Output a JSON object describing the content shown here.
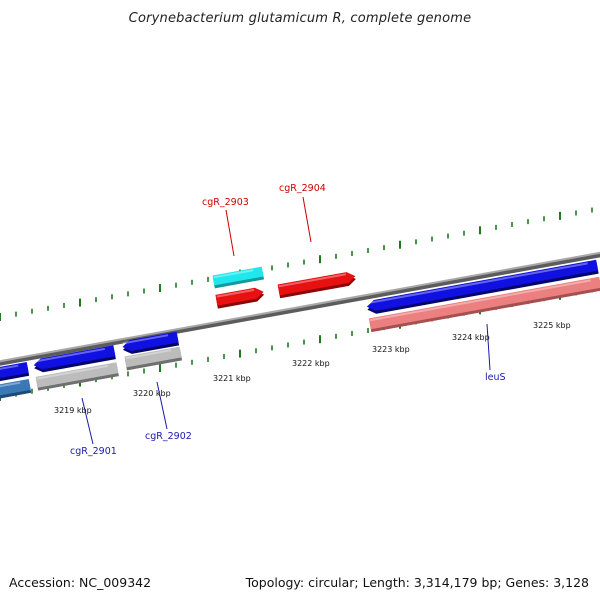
{
  "title": "Corynebacterium glutamicum R, complete genome",
  "footer": {
    "accession": "Accession: NC_009342",
    "summary": "Topology: circular; Length: 3,314,179 bp; Genes: 3,128"
  },
  "colors": {
    "backbone": "#8a8a8a",
    "tick": "#1f7a1f",
    "gene_blue": "#1010e0",
    "gene_red": "#e81010",
    "gene_cyan": "#1ee8ee",
    "gene_gray": "#bcbcbc",
    "gene_pink": "#ec8080",
    "gene_steel": "#3a78b8",
    "label_red": "#cc0000",
    "label_blue": "#1a1aa8",
    "scale_label": "#111111"
  },
  "scale_labels": [
    "3219 kbp",
    "3220 kbp",
    "3221 kbp",
    "3222 kbp",
    "3223 kbp",
    "3224 kbp",
    "3225 kbp"
  ],
  "gene_labels": [
    "cgR_2903",
    "cgR_2904",
    "cgR_2901",
    "cgR_2902",
    "leuS"
  ]
}
